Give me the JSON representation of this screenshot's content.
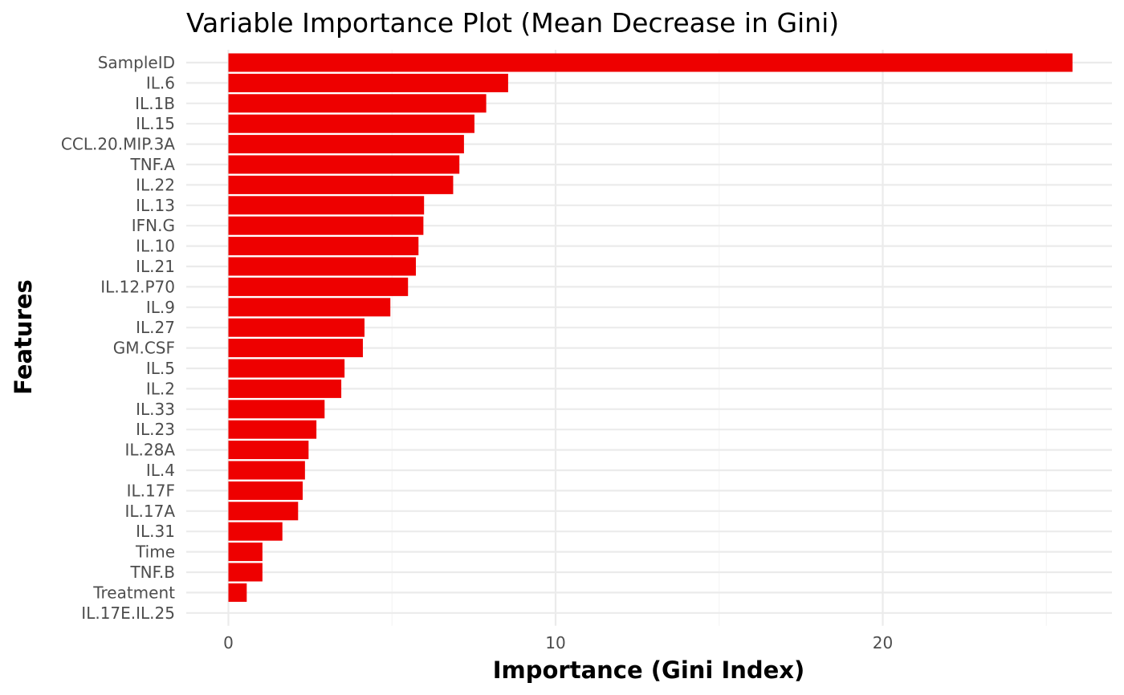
{
  "chart_data": {
    "type": "bar",
    "orientation": "horizontal",
    "title": "Variable Importance Plot (Mean Decrease in Gini)",
    "xlabel": "Importance (Gini Index)",
    "ylabel": "Features",
    "xlim": [
      0,
      27
    ],
    "xticks": [
      0,
      10,
      20
    ],
    "grid": true,
    "bar_color": "#EE0000",
    "categories": [
      "SampleID",
      "IL.6",
      "IL.1B",
      "IL.15",
      "CCL.20.MIP.3A",
      "TNF.A",
      "IL.22",
      "IL.13",
      "IFN.G",
      "IL.10",
      "IL.21",
      "IL.12.P70",
      "IL.9",
      "IL.27",
      "GM.CSF",
      "IL.5",
      "IL.2",
      "IL.33",
      "IL.23",
      "IL.28A",
      "IL.4",
      "IL.17F",
      "IL.17A",
      "IL.31",
      "Time",
      "TNF.B",
      "Treatment",
      "IL.17E.IL.25"
    ],
    "values": [
      25.8,
      8.55,
      7.88,
      7.52,
      7.2,
      7.06,
      6.87,
      5.98,
      5.96,
      5.81,
      5.73,
      5.49,
      4.95,
      4.16,
      4.11,
      3.55,
      3.45,
      2.94,
      2.69,
      2.45,
      2.34,
      2.27,
      2.13,
      1.65,
      1.04,
      1.04,
      0.56,
      0
    ]
  }
}
